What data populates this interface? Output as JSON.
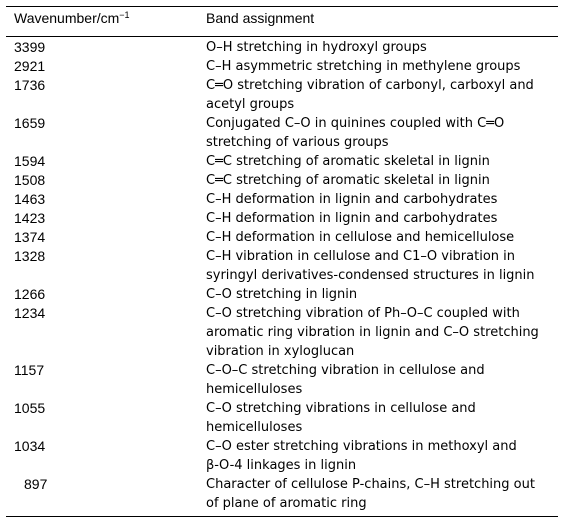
{
  "table": {
    "header": {
      "wavenumber": "Wavenumber/cm",
      "wavenumber_sup": "−1",
      "assignment": "Band assignment"
    },
    "rows": [
      {
        "wavenumber": "3399",
        "assignment": "O–H stretching in hydroxyl groups"
      },
      {
        "wavenumber": "2921",
        "assignment": "C–H asymmetric stretching in methylene groups"
      },
      {
        "wavenumber": "1736",
        "assignment": "C═O stretching vibration of carbonyl, carboxyl and\nacetyl groups"
      },
      {
        "wavenumber": "1659",
        "assignment": "Conjugated C–O in quinines coupled with C═O\nstretching of various groups"
      },
      {
        "wavenumber": "1594",
        "assignment": "C═C stretching of aromatic skeletal in lignin"
      },
      {
        "wavenumber": "1508",
        "assignment": "C═C stretching of aromatic skeletal in lignin"
      },
      {
        "wavenumber": "1463",
        "assignment": "C–H deformation in lignin and carbohydrates"
      },
      {
        "wavenumber": "1423",
        "assignment": "C–H deformation in lignin and carbohydrates"
      },
      {
        "wavenumber": "1374",
        "assignment": "C–H deformation in cellulose and hemicellulose"
      },
      {
        "wavenumber": "1328",
        "assignment": "C–H vibration in cellulose and C1–O vibration in\nsyringyl derivatives-condensed structures in lignin"
      },
      {
        "wavenumber": "1266",
        "assignment": "C–O stretching in lignin"
      },
      {
        "wavenumber": "1234",
        "assignment": "C–O stretching vibration of Ph–O–C coupled with\naromatic ring vibration in lignin and C–O stretching\nvibration in xyloglucan"
      },
      {
        "wavenumber": "1157",
        "assignment": "C–O–C stretching vibration in cellulose and\nhemicelluloses"
      },
      {
        "wavenumber": "1055",
        "assignment": "C–O stretching vibrations in cellulose and\nhemicelluloses"
      },
      {
        "wavenumber": "1034",
        "assignment": "C–O ester stretching vibrations in methoxyl and\nβ-O-4 linkages in lignin"
      },
      {
        "wavenumber": "897",
        "assignment": "Character of cellulose P-chains, C–H stretching out\nof plane of aromatic ring"
      }
    ]
  }
}
